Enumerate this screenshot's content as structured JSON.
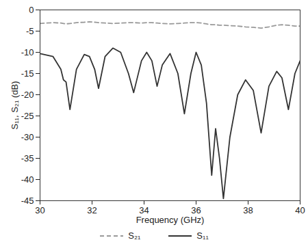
{
  "chart_data": {
    "type": "line",
    "x_label": "Frequency (GHz)",
    "y_label": "S₁₁, S₂₁ (dB)",
    "x": [
      30,
      30.5,
      30.8,
      30.9,
      31.0,
      31.15,
      31.4,
      31.7,
      31.9,
      32.1,
      32.25,
      32.5,
      32.8,
      33.1,
      33.4,
      33.6,
      33.9,
      34.1,
      34.3,
      34.5,
      34.7,
      35.0,
      35.3,
      35.55,
      35.8,
      36.0,
      36.2,
      36.4,
      36.6,
      36.75,
      36.9,
      37.05,
      37.3,
      37.6,
      37.9,
      38.2,
      38.5,
      38.8,
      39.1,
      39.3,
      39.55,
      39.8,
      40
    ],
    "series": [
      {
        "name": "S₂₁",
        "color": "#999999",
        "line_style": "dashed",
        "values": [
          -3.2,
          -3.0,
          -3.1,
          -3.2,
          -3.3,
          -3.2,
          -3.0,
          -2.9,
          -2.8,
          -2.9,
          -3.0,
          -3.1,
          -3.2,
          -3.1,
          -3.0,
          -3.0,
          -3.1,
          -3.0,
          -3.0,
          -3.1,
          -3.2,
          -3.3,
          -3.2,
          -3.1,
          -3.0,
          -3.0,
          -3.1,
          -3.3,
          -3.5,
          -3.5,
          -3.6,
          -3.6,
          -3.7,
          -3.8,
          -4.0,
          -4.1,
          -4.3,
          -4.0,
          -3.6,
          -3.5,
          -3.6,
          -3.8,
          -3.8
        ]
      },
      {
        "name": "S₁₁",
        "color": "#333333",
        "line_style": "solid",
        "values": [
          -10.3,
          -11,
          -14,
          -16.5,
          -17,
          -23.5,
          -14,
          -10.5,
          -11,
          -14,
          -18.5,
          -11,
          -9,
          -10,
          -15,
          -19.5,
          -12,
          -10,
          -12,
          -18,
          -13,
          -10.3,
          -15,
          -24.5,
          -15,
          -10,
          -13,
          -22,
          -39,
          -28,
          -35,
          -44.5,
          -30,
          -20,
          -16.5,
          -19,
          -29,
          -18,
          -14.5,
          -16,
          -23.5,
          -15,
          -12
        ]
      }
    ],
    "xlim": [
      30,
      40
    ],
    "xticks": [
      30,
      32,
      34,
      36,
      38,
      40
    ],
    "ylim": [
      -45,
      0
    ],
    "yticks": [
      0,
      -5,
      -10,
      -15,
      -20,
      -25,
      -30,
      -35,
      -40,
      -45
    ],
    "grid": false,
    "legend": "bottom"
  }
}
